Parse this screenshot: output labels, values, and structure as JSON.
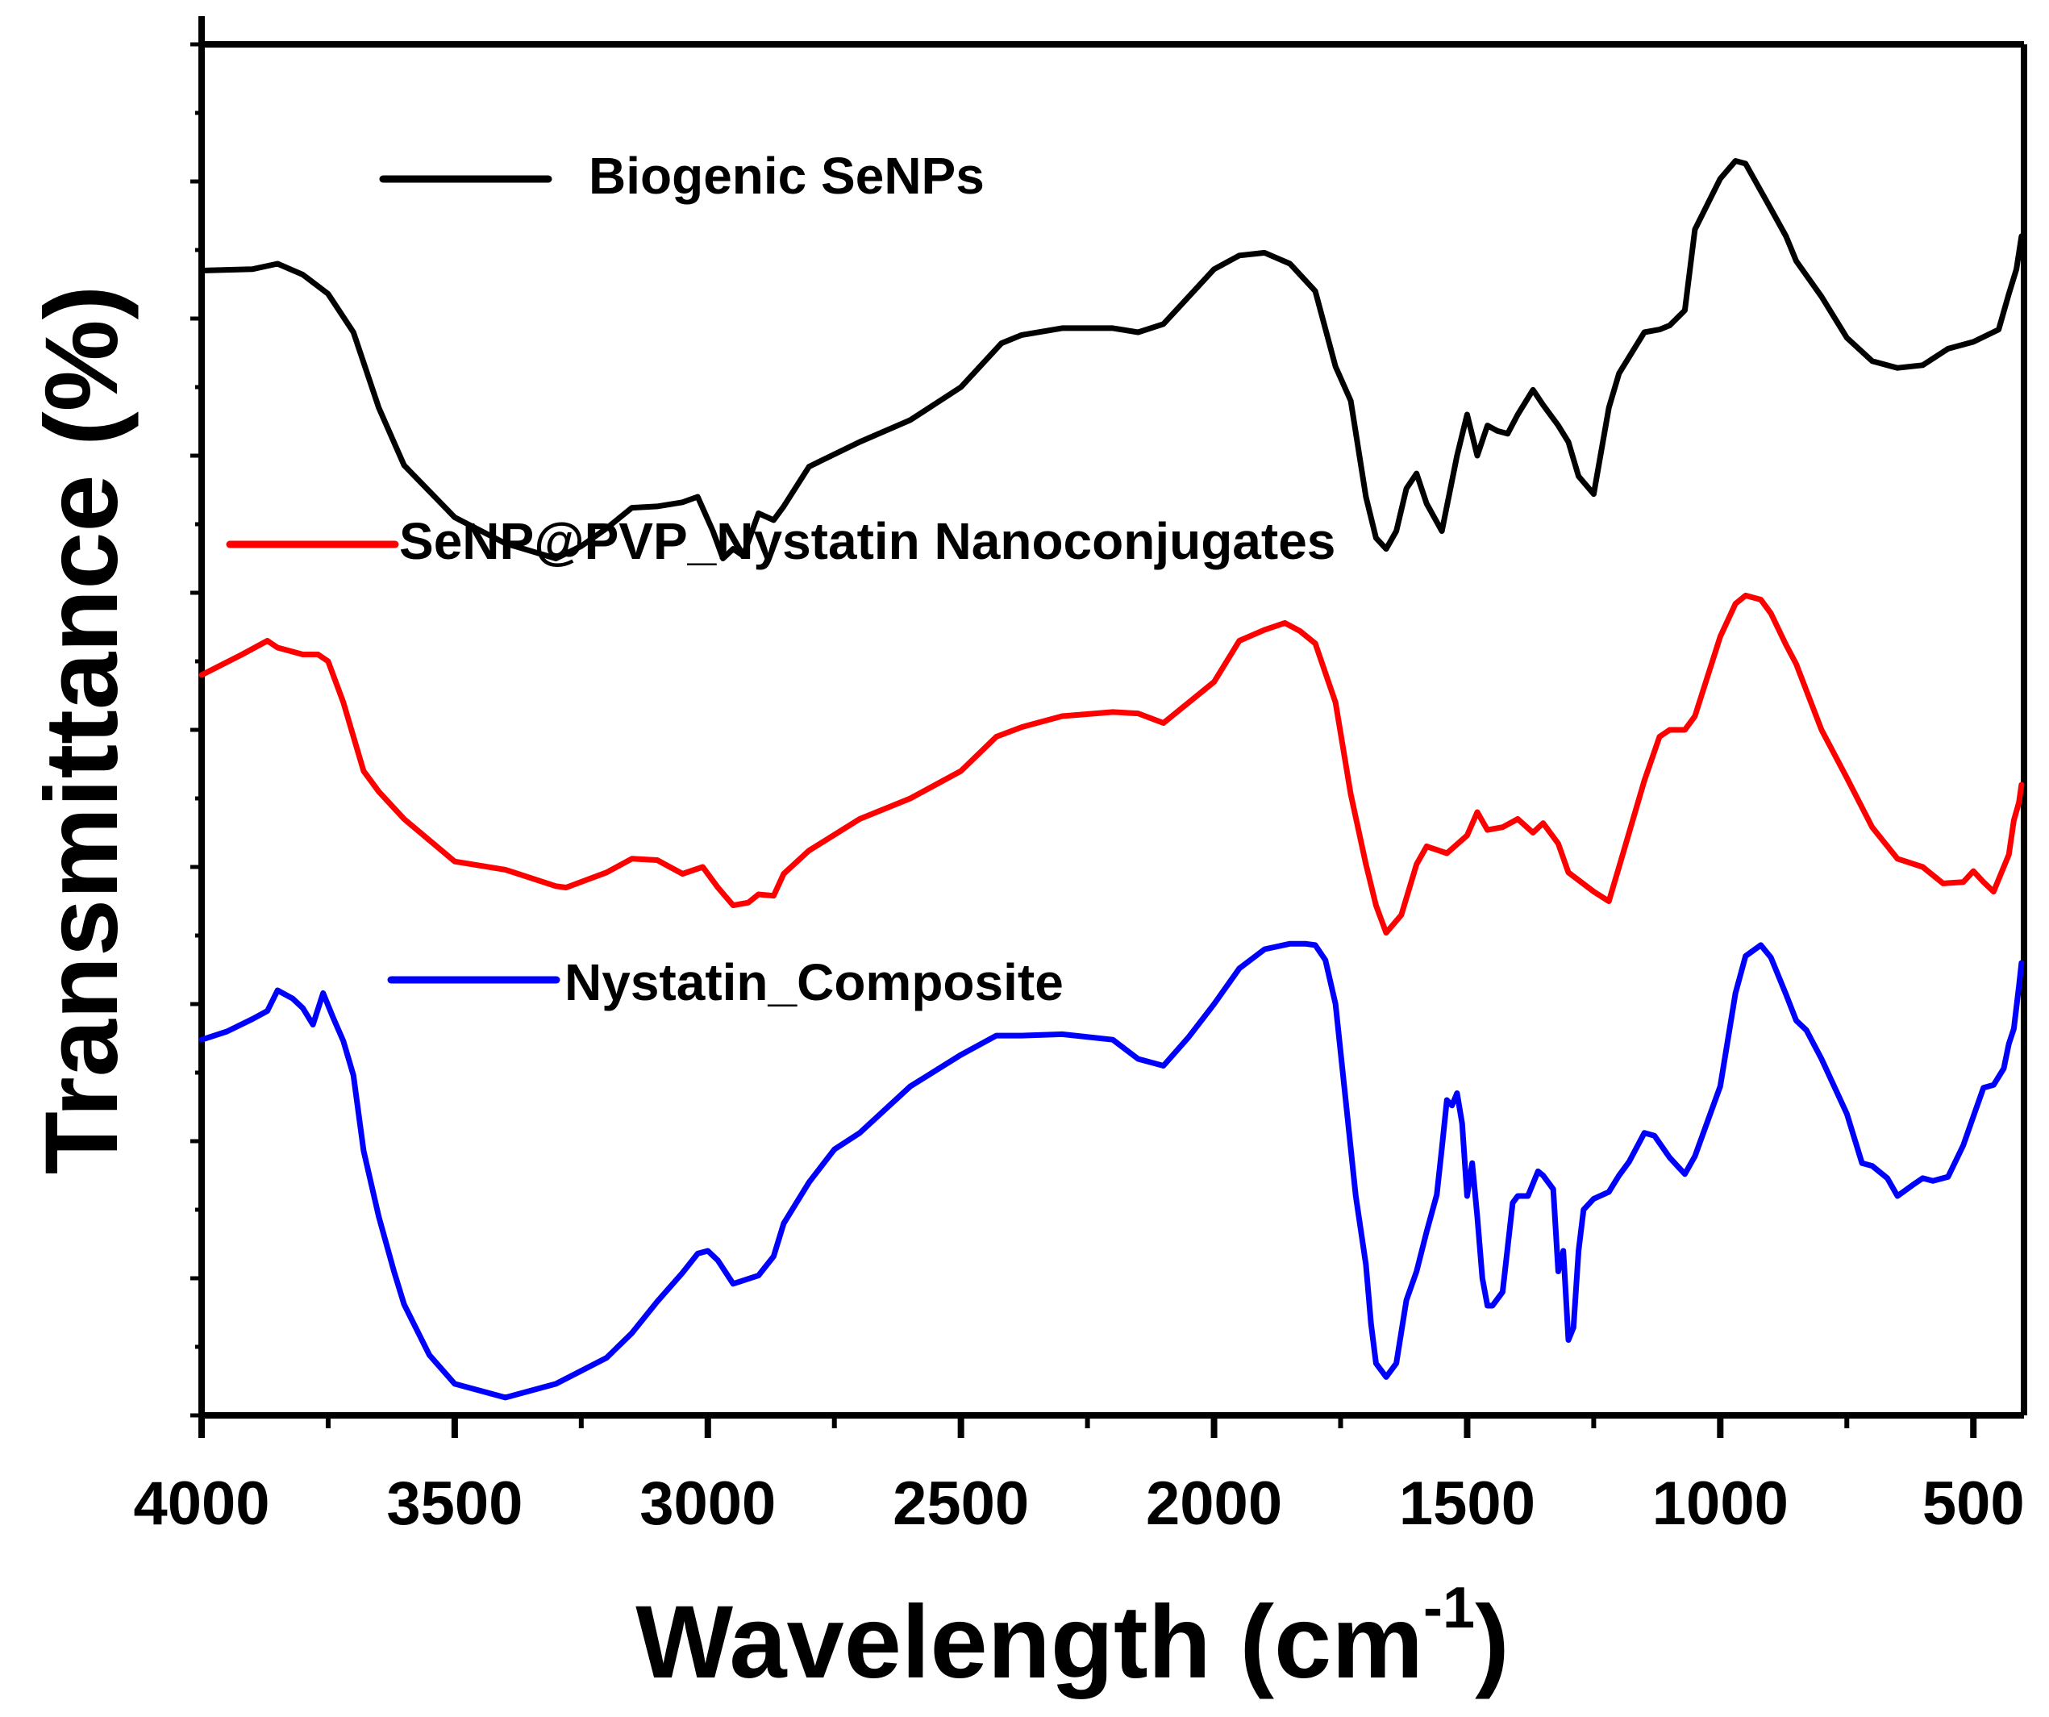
{
  "chart_data": {
    "type": "line",
    "title": "",
    "xlabel": "Wavelength (cm",
    "xlabel_sup": "-1",
    "xlabel_close": ")",
    "ylabel": "Transmittance (%)",
    "xlim": [
      4000,
      400
    ],
    "x_reversed": true,
    "ylim": [
      0,
      100
    ],
    "y_ticks_labeled": false,
    "grid": false,
    "legend_placement": "inline",
    "x_ticks": [
      4000,
      3500,
      3000,
      2500,
      2000,
      1500,
      1000,
      500
    ],
    "x_tick_labels": [
      "4000",
      "3500",
      "3000",
      "2500",
      "2000",
      "1500",
      "1000",
      "500"
    ],
    "series": [
      {
        "name": "Biogenic SeNPs",
        "color": "#000000",
        "x": [
          4000,
          3900,
          3850,
          3800,
          3750,
          3700,
          3650,
          3600,
          3500,
          3400,
          3300,
          3250,
          3200,
          3150,
          3100,
          3050,
          3020,
          2990,
          2970,
          2950,
          2930,
          2900,
          2870,
          2850,
          2800,
          2700,
          2600,
          2500,
          2420,
          2380,
          2300,
          2200,
          2150,
          2100,
          2000,
          1950,
          1900,
          1850,
          1800,
          1760,
          1730,
          1700,
          1680,
          1660,
          1640,
          1620,
          1600,
          1580,
          1550,
          1520,
          1500,
          1480,
          1460,
          1440,
          1420,
          1400,
          1370,
          1350,
          1320,
          1300,
          1280,
          1250,
          1220,
          1200,
          1150,
          1120,
          1100,
          1070,
          1050,
          1000,
          970,
          950,
          900,
          870,
          850,
          800,
          750,
          700,
          650,
          600,
          550,
          500,
          450,
          430,
          415,
          405
        ],
        "y": [
          83.5,
          83.6,
          84.0,
          83.2,
          81.8,
          79.0,
          73.5,
          69.3,
          65.5,
          63.6,
          62.5,
          63.4,
          64.7,
          66.2,
          66.3,
          66.6,
          67.0,
          64.5,
          62.5,
          63.2,
          62.7,
          65.8,
          65.3,
          66.3,
          69.2,
          71.0,
          72.6,
          75.0,
          78.2,
          78.8,
          79.3,
          79.3,
          79.0,
          79.6,
          83.6,
          84.6,
          84.8,
          84.0,
          82.0,
          76.5,
          74.0,
          67.0,
          64.0,
          63.2,
          64.5,
          67.6,
          68.7,
          66.5,
          64.5,
          70.0,
          73.0,
          70.0,
          72.2,
          71.8,
          71.6,
          73.0,
          74.8,
          73.7,
          72.2,
          71.0,
          68.5,
          67.2,
          73.5,
          76.0,
          79.0,
          79.2,
          79.5,
          80.6,
          86.5,
          90.2,
          91.5,
          91.3,
          88.0,
          86.0,
          84.2,
          81.6,
          78.6,
          76.9,
          76.4,
          76.6,
          77.8,
          78.3,
          79.2,
          81.8,
          83.6,
          86.0
        ]
      },
      {
        "name": "SeNP@PVP_Nystatin Nanoconjugates",
        "color": "#ff0000",
        "x": [
          4000,
          3920,
          3870,
          3850,
          3800,
          3770,
          3750,
          3720,
          3680,
          3650,
          3600,
          3500,
          3400,
          3300,
          3280,
          3200,
          3150,
          3100,
          3050,
          3010,
          2980,
          2950,
          2920,
          2900,
          2870,
          2850,
          2800,
          2700,
          2600,
          2500,
          2430,
          2380,
          2300,
          2200,
          2150,
          2100,
          2000,
          1950,
          1900,
          1860,
          1830,
          1800,
          1760,
          1730,
          1700,
          1680,
          1660,
          1630,
          1600,
          1580,
          1540,
          1500,
          1480,
          1460,
          1430,
          1400,
          1370,
          1350,
          1320,
          1300,
          1250,
          1220,
          1200,
          1150,
          1120,
          1100,
          1070,
          1050,
          1000,
          970,
          950,
          920,
          900,
          870,
          850,
          800,
          750,
          700,
          650,
          600,
          560,
          520,
          500,
          480,
          460,
          430,
          420,
          410,
          405
        ],
        "y": [
          54.0,
          55.5,
          56.5,
          56.0,
          55.5,
          55.5,
          55.0,
          52.0,
          47.0,
          45.5,
          43.5,
          40.4,
          39.8,
          38.6,
          38.5,
          39.6,
          40.6,
          40.5,
          39.5,
          40.0,
          38.5,
          37.2,
          37.4,
          38.0,
          37.9,
          39.5,
          41.2,
          43.5,
          45.0,
          47.0,
          49.5,
          50.2,
          51.0,
          51.3,
          51.2,
          50.5,
          53.5,
          56.5,
          57.3,
          57.8,
          57.2,
          56.3,
          52.0,
          45.3,
          40.2,
          37.2,
          35.2,
          36.5,
          40.2,
          41.5,
          41.0,
          42.3,
          44.0,
          42.7,
          42.9,
          43.5,
          42.5,
          43.2,
          41.7,
          39.6,
          38.2,
          37.5,
          40.0,
          46.3,
          49.5,
          50.0,
          50.0,
          51.0,
          56.8,
          59.2,
          59.8,
          59.5,
          58.5,
          56.2,
          54.8,
          50.0,
          46.5,
          42.9,
          40.6,
          40.0,
          38.8,
          38.9,
          39.7,
          38.9,
          38.2,
          40.9,
          43.4,
          44.7,
          46.0
        ]
      },
      {
        "name": "Nystatin_Composite",
        "color": "#0000ff",
        "x": [
          4000,
          3950,
          3900,
          3870,
          3850,
          3820,
          3800,
          3780,
          3760,
          3740,
          3720,
          3700,
          3680,
          3650,
          3620,
          3600,
          3550,
          3500,
          3400,
          3300,
          3200,
          3150,
          3100,
          3050,
          3020,
          3000,
          2980,
          2950,
          2900,
          2870,
          2850,
          2800,
          2750,
          2700,
          2600,
          2500,
          2430,
          2380,
          2300,
          2200,
          2150,
          2100,
          2050,
          2000,
          1950,
          1900,
          1850,
          1820,
          1800,
          1780,
          1760,
          1740,
          1720,
          1700,
          1690,
          1680,
          1660,
          1640,
          1620,
          1600,
          1580,
          1560,
          1550,
          1540,
          1530,
          1520,
          1510,
          1500,
          1490,
          1480,
          1470,
          1460,
          1450,
          1430,
          1410,
          1400,
          1380,
          1360,
          1350,
          1330,
          1320,
          1310,
          1300,
          1290,
          1280,
          1270,
          1250,
          1220,
          1200,
          1180,
          1150,
          1130,
          1100,
          1070,
          1050,
          1000,
          970,
          950,
          920,
          900,
          870,
          850,
          830,
          800,
          750,
          720,
          700,
          670,
          650,
          620,
          600,
          580,
          550,
          520,
          500,
          480,
          460,
          440,
          430,
          420,
          410,
          405
        ],
        "y": [
          27.4,
          28.0,
          28.9,
          29.5,
          31.0,
          30.4,
          29.7,
          28.5,
          30.8,
          29.0,
          27.3,
          24.8,
          19.3,
          14.5,
          10.5,
          8.1,
          4.4,
          2.3,
          1.3,
          2.3,
          4.2,
          6.0,
          8.3,
          10.4,
          11.8,
          12.0,
          11.3,
          9.6,
          10.2,
          11.6,
          14.0,
          17.0,
          19.4,
          20.6,
          24.0,
          26.3,
          27.7,
          27.7,
          27.8,
          27.4,
          26.0,
          25.5,
          27.6,
          30.0,
          32.6,
          34.0,
          34.4,
          34.4,
          34.3,
          33.2,
          30.0,
          23.0,
          16.0,
          11.0,
          6.7,
          3.8,
          2.8,
          3.8,
          8.4,
          10.5,
          13.4,
          16.1,
          19.5,
          23.0,
          22.6,
          23.5,
          21.3,
          16.0,
          18.4,
          14.5,
          10.0,
          8.0,
          8.0,
          9.0,
          15.5,
          16.0,
          16.0,
          17.8,
          17.5,
          16.5,
          10.5,
          12.0,
          5.5,
          6.4,
          12.0,
          15.0,
          15.8,
          16.3,
          17.5,
          18.5,
          20.6,
          20.4,
          18.8,
          17.6,
          18.9,
          24.0,
          30.8,
          33.5,
          34.3,
          33.4,
          30.7,
          28.8,
          28.1,
          26.0,
          22.0,
          18.4,
          18.2,
          17.3,
          16.0,
          16.8,
          17.3,
          17.1,
          17.4,
          19.7,
          21.8,
          23.9,
          24.1,
          25.3,
          27.1,
          28.2,
          31.3,
          33.0
        ]
      }
    ],
    "annotations": [
      {
        "text": "Biogenic SeNPs",
        "series": 0
      },
      {
        "text": "SeNP@PVP_Nystatin Nanoconjugates",
        "series": 1
      },
      {
        "text": "Nystatin_Composite",
        "series": 2
      }
    ]
  }
}
